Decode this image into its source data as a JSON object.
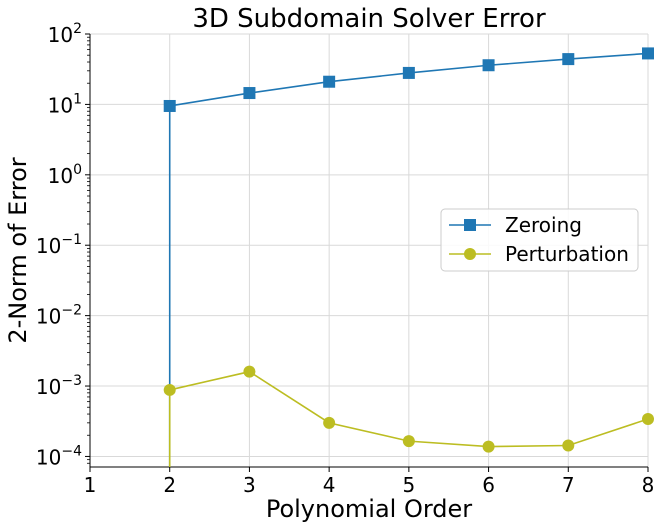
{
  "chart_data": {
    "type": "line",
    "title": "3D Subdomain Solver Error",
    "xlabel": "Polynomial Order",
    "ylabel": "2-Norm of Error",
    "xlim": [
      1,
      8
    ],
    "ylim_log10": [
      -4.15,
      2
    ],
    "yscale": "log",
    "grid": true,
    "legend_position": "center-right",
    "x_ticks": [
      1,
      2,
      3,
      4,
      5,
      6,
      7,
      8
    ],
    "x_tick_labels": [
      "1",
      "2",
      "3",
      "4",
      "5",
      "6",
      "7",
      "8"
    ],
    "y_tick_exponents": [
      -4,
      -3,
      -2,
      -1,
      0,
      1,
      2
    ],
    "y_tick_base": "10",
    "series": [
      {
        "name": "Zeroing",
        "color": "#1f77b4",
        "marker": "square",
        "x": [
          2,
          3,
          4,
          5,
          6,
          7,
          8
        ],
        "y": [
          9.5,
          14.5,
          21,
          28,
          36,
          44,
          53
        ],
        "drop_to_bottom_at_x": 2
      },
      {
        "name": "Perturbation",
        "color": "#bcbd22",
        "marker": "circle",
        "x": [
          2,
          3,
          4,
          5,
          6,
          7,
          8
        ],
        "y": [
          0.00088,
          0.0016,
          0.0003,
          0.000165,
          0.000138,
          0.000143,
          0.00034
        ],
        "drop_to_bottom_at_x": 2
      }
    ]
  }
}
